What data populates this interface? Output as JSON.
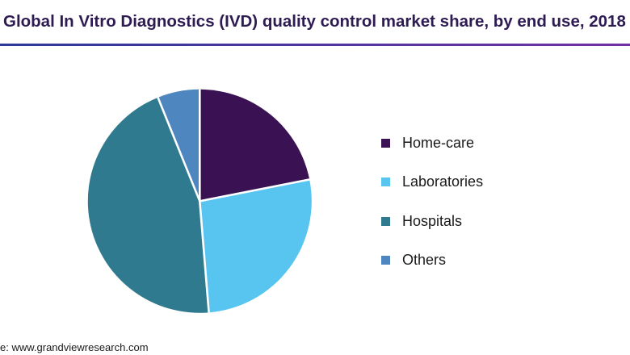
{
  "page": {
    "background_color": "#ffffff"
  },
  "header": {
    "title": "Global In Vitro Diagnostics (IVD) quality control market share, by end use, 2018",
    "title_color": "#2d1b52",
    "rule_gradient_left_color": "#2b3a9a",
    "rule_gradient_right_color": "#7330a2"
  },
  "chart_data": {
    "type": "pie",
    "title": "Global In Vitro Diagnostics (IVD) quality control market share, by end use, 2018",
    "categories": [
      "Home-care",
      "Laboratories",
      "Hospitals",
      "Others"
    ],
    "values": [
      21.9,
      26.8,
      45.2,
      6.1
    ],
    "unit": "percent",
    "colors": [
      "#3a1253",
      "#58c5f1",
      "#2f7a8e",
      "#4e86c0"
    ],
    "start_angle_deg": 0,
    "direction": "clockwise",
    "slice_separator_color": "#ffffff",
    "legend_position": "right",
    "data_labels_shown": false
  },
  "legend": {
    "items": [
      {
        "label": "Home-care",
        "color": "#3a1253"
      },
      {
        "label": "Laboratories",
        "color": "#58c5f1"
      },
      {
        "label": "Hospitals",
        "color": "#2f7a8e"
      },
      {
        "label": "Others",
        "color": "#4e86c0"
      }
    ]
  },
  "footer": {
    "source_text": "e: www.grandviewresearch.com"
  }
}
